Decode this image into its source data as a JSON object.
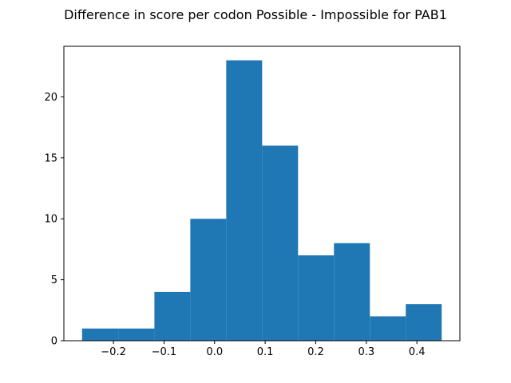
{
  "chart_data": {
    "type": "bar",
    "title": "Difference in score per codon Possible - Impossible for PAB1",
    "xlabel": "",
    "ylabel": "",
    "bins": [
      {
        "x0": -0.262,
        "x1": -0.19,
        "count": 1
      },
      {
        "x0": -0.19,
        "x1": -0.119,
        "count": 1
      },
      {
        "x0": -0.119,
        "x1": -0.048,
        "count": 4
      },
      {
        "x0": -0.048,
        "x1": 0.023,
        "count": 10
      },
      {
        "x0": 0.023,
        "x1": 0.094,
        "count": 23
      },
      {
        "x0": 0.094,
        "x1": 0.165,
        "count": 16
      },
      {
        "x0": 0.165,
        "x1": 0.236,
        "count": 7
      },
      {
        "x0": 0.236,
        "x1": 0.307,
        "count": 8
      },
      {
        "x0": 0.307,
        "x1": 0.378,
        "count": 2
      },
      {
        "x0": 0.378,
        "x1": 0.449,
        "count": 3
      }
    ],
    "xlim": [
      -0.298,
      0.485
    ],
    "ylim": [
      0,
      24.15
    ],
    "xticks": [
      -0.2,
      -0.1,
      0.0,
      0.1,
      0.2,
      0.3,
      0.4
    ],
    "xtick_labels": [
      "−0.2",
      "−0.1",
      "0.0",
      "0.1",
      "0.2",
      "0.3",
      "0.4"
    ],
    "yticks": [
      0,
      5,
      10,
      15,
      20
    ],
    "ytick_labels": [
      "0",
      "5",
      "10",
      "15",
      "20"
    ],
    "bar_color": "#1f77b4",
    "grid": false,
    "legend": "none"
  }
}
